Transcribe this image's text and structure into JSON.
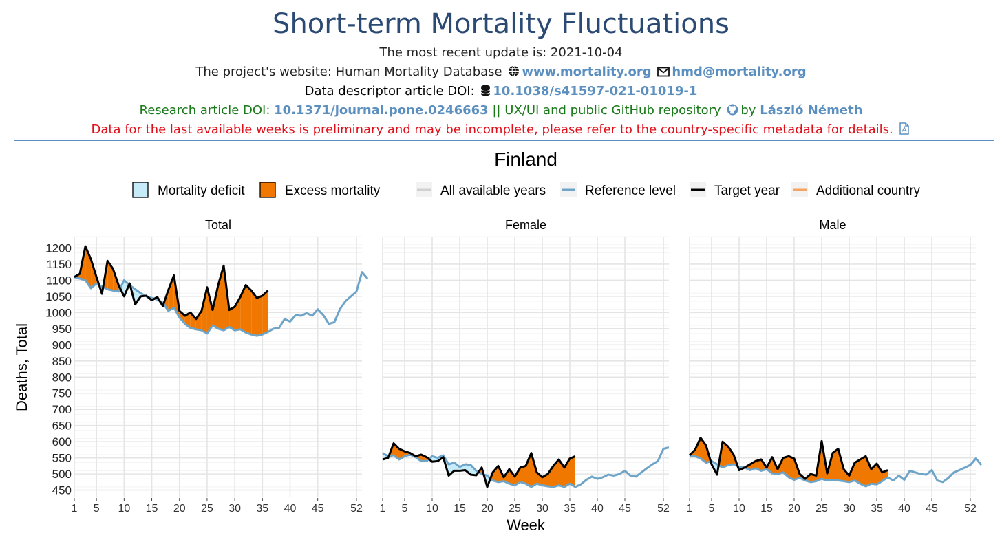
{
  "header": {
    "title": "Short-term Mortality Fluctuations",
    "update_line": "The most recent update is: 2021-10-04",
    "website_prefix": "The project's website: Human Mortality Database",
    "website_link": "www.mortality.org",
    "email_link": "hmd@mortality.org",
    "descriptor_prefix": "Data descriptor article DOI:",
    "descriptor_link": "10.1038/s41597-021-01019-1",
    "research_prefix": "Research article DOI:",
    "research_link": "10.1371/journal.pone.0246663",
    "research_middle": "|| UX/UI and public GitHub repository",
    "research_by": "by",
    "author_link": "László Németh",
    "warning": "Data for the last available weeks is preliminary and may be incomplete, please refer to the country-specific metadata for details.",
    "icons": [
      "globe-icon",
      "envelope-icon",
      "database-icon",
      "github-icon",
      "pdf-file-icon"
    ],
    "colors": {
      "title": "#2b4a73",
      "link": "#5b8fbf",
      "research": "#1a7a1a",
      "warning": "#e0101a"
    }
  },
  "chart_data": {
    "type": "line",
    "title": "Finland",
    "xlabel": "Week",
    "ylabel": "Deaths, Total",
    "xlim": [
      1,
      53
    ],
    "ylim": [
      430,
      1235
    ],
    "yticks": [
      450,
      500,
      550,
      600,
      650,
      700,
      750,
      800,
      850,
      900,
      950,
      1000,
      1050,
      1100,
      1150,
      1200
    ],
    "xticks": [
      1,
      5,
      10,
      15,
      20,
      25,
      30,
      35,
      40,
      45,
      52
    ],
    "grid": true,
    "legend_position": "top",
    "legend": [
      {
        "label": "Mortality deficit",
        "kind": "fill",
        "color": "#c6ecfa"
      },
      {
        "label": "Excess mortality",
        "kind": "fill",
        "color": "#f07800"
      },
      {
        "label": "All available years",
        "kind": "line",
        "color": "#d0d0d0"
      },
      {
        "label": "Reference level",
        "kind": "line",
        "color": "#6ea4c8"
      },
      {
        "label": "Target year",
        "kind": "line",
        "color": "#000000"
      },
      {
        "label": "Additional country",
        "kind": "line",
        "color": "#f4a460"
      }
    ],
    "panels": [
      {
        "name": "Total",
        "reference": [
          1110,
          1105,
          1100,
          1075,
          1090,
          1080,
          1072,
          1068,
          1065,
          1100,
          1085,
          1072,
          1060,
          1050,
          1045,
          1040,
          1030,
          1005,
          1015,
          985,
          965,
          952,
          948,
          945,
          935,
          960,
          950,
          945,
          955,
          945,
          948,
          938,
          932,
          928,
          932,
          940,
          950,
          952,
          980,
          972,
          992,
          990,
          998,
          990,
          1010,
          992,
          965,
          970,
          1010,
          1035,
          1050,
          1065,
          1125,
          1105
        ],
        "target": [
          1110,
          1120,
          1205,
          1165,
          1110,
          1058,
          1160,
          1135,
          1085,
          1050,
          1090,
          1025,
          1050,
          1052,
          1038,
          1048,
          1020,
          1070,
          1115,
          1005,
          990,
          1000,
          980,
          1005,
          1078,
          1008,
          1085,
          1145,
          1008,
          1018,
          1048,
          1085,
          1068,
          1045,
          1052,
          1068
        ]
      },
      {
        "name": "Female",
        "reference": [
          565,
          555,
          558,
          545,
          555,
          560,
          552,
          540,
          540,
          555,
          550,
          558,
          530,
          535,
          522,
          530,
          528,
          510,
          500,
          495,
          480,
          475,
          478,
          470,
          465,
          475,
          470,
          460,
          470,
          465,
          462,
          460,
          465,
          460,
          470,
          460,
          468,
          482,
          492,
          485,
          490,
          498,
          495,
          500,
          510,
          495,
          492,
          505,
          518,
          530,
          540,
          578,
          582
        ],
        "target": [
          545,
          550,
          595,
          578,
          570,
          565,
          555,
          560,
          552,
          538,
          540,
          552,
          495,
          510,
          510,
          512,
          498,
          496,
          520,
          460,
          505,
          525,
          490,
          515,
          492,
          520,
          525,
          565,
          505,
          490,
          500,
          525,
          545,
          520,
          548,
          555
        ]
      },
      {
        "name": "Male",
        "reference": [
          555,
          555,
          548,
          535,
          540,
          530,
          520,
          528,
          530,
          522,
          520,
          512,
          518,
          510,
          515,
          502,
          500,
          505,
          490,
          482,
          488,
          480,
          475,
          478,
          485,
          480,
          482,
          480,
          478,
          475,
          480,
          470,
          462,
          470,
          468,
          478,
          490,
          480,
          495,
          482,
          510,
          505,
          500,
          498,
          512,
          480,
          475,
          488,
          505,
          512,
          520,
          528,
          548,
          528
        ],
        "target": [
          558,
          575,
          612,
          588,
          530,
          498,
          600,
          585,
          560,
          512,
          520,
          530,
          540,
          545,
          520,
          552,
          515,
          550,
          555,
          548,
          500,
          485,
          500,
          495,
          602,
          502,
          565,
          578,
          515,
          495,
          535,
          545,
          555,
          515,
          532,
          505,
          512
        ]
      }
    ]
  }
}
